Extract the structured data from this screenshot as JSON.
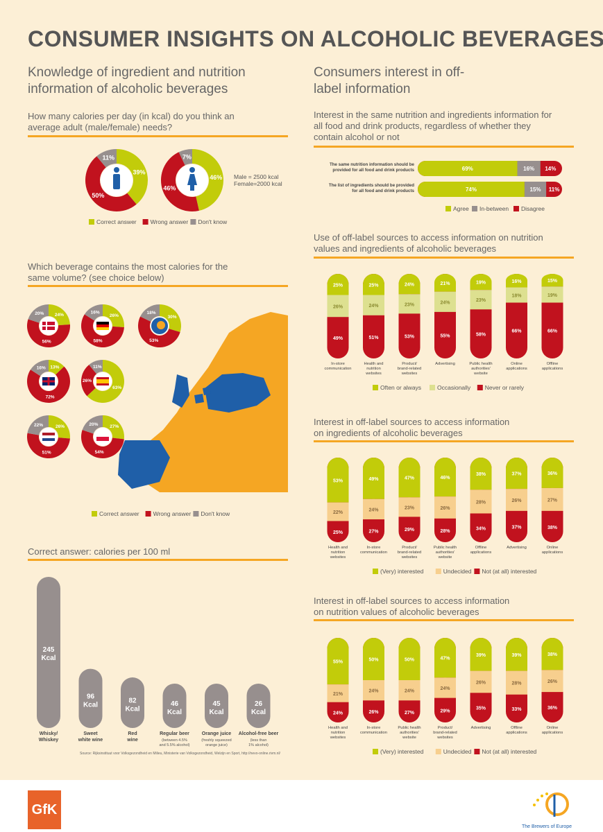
{
  "title": "CONSUMER INSIGHTS ON ALCOHOLIC BEVERAGES",
  "colors": {
    "green": "#c2cc0a",
    "red": "#c1121e",
    "grey": "#978f8e",
    "lightgreen": "#dde090",
    "lightorange": "#f7cf8e",
    "orange": "#f5a623",
    "blue": "#1f5fa8",
    "bg": "#fcefd6"
  },
  "left": {
    "section_title": "Knowledge of ingredient and nutrition information of alcoholic beverages",
    "q1": "How many calories per day (in kcal) do you think an average adult (male/female) needs?",
    "q1_note_male": "Male = 2500 kcal",
    "q1_note_female": "Female=2000 kcal",
    "legend_correct": "Correct answer",
    "legend_wrong": "Wrong answer",
    "legend_dontknow": "Don't know",
    "q2": "Which beverage contains the most calories for the same volume? (see choice below)",
    "q3": "Correct answer: calories per 100 ml",
    "source": "Source: Rijksinstituut voor Volksgezondheid en Milieu, Ministerie van Volksgezondheid, Welzijn en Sport, http://nevo-online.rivm.nl/"
  },
  "right": {
    "section_title": "Consumers interest in off-label information",
    "c1_title": "Interest in the same nutrition and ingredients information for all food and drink products, regardless of whether they contain alcohol or not",
    "c2_title": "Use of off-label sources to access information on nutrition values and ingredients of alcoholic beverages",
    "c3_title": "Interest in off-label sources to access information on ingredients of alcoholic beverages",
    "c4_title": "Interest in off-label sources to access information on nutrition values of alcoholic beverages"
  },
  "logos": {
    "gfk": "GfK",
    "brewers": "The Brewers of Europe"
  },
  "chart_data": [
    {
      "type": "pie",
      "id": "calories_per_day",
      "series": [
        {
          "name": "Male",
          "values": {
            "Correct answer": 39,
            "Wrong answer": 50,
            "Don't know": 11
          }
        },
        {
          "name": "Female",
          "values": {
            "Correct answer": 46,
            "Wrong answer": 46,
            "Don't know": 7
          }
        }
      ]
    },
    {
      "type": "pie",
      "id": "most_calories_by_country",
      "categories": [
        "Denmark",
        "Germany",
        "EU",
        "United Kingdom",
        "Spain",
        "Netherlands",
        "Poland"
      ],
      "series": [
        {
          "name": "Correct answer",
          "values": [
            24,
            26,
            30,
            13,
            63,
            26,
            27
          ]
        },
        {
          "name": "Wrong answer",
          "values": [
            56,
            58,
            53,
            72,
            26,
            51,
            54
          ]
        },
        {
          "name": "Don't know",
          "values": [
            20,
            16,
            18,
            16,
            11,
            22,
            20
          ]
        }
      ]
    },
    {
      "type": "bar",
      "id": "calories_per_100ml",
      "title": "Correct answer: calories per 100 ml",
      "categories": [
        "Whisky/ Whiskey",
        "Sweet white wine",
        "Red wine",
        "Regular beer",
        "Orange juice",
        "Alcohol-free beer"
      ],
      "subcaptions": [
        "",
        "",
        "",
        "(between 4.5% and 5.5% alcohol)",
        "(freshly squeezed orange juice)",
        "(less than 1% alcohol)"
      ],
      "values": [
        245,
        96,
        82,
        46,
        45,
        26
      ],
      "unit": "Kcal"
    },
    {
      "type": "bar",
      "id": "same_info",
      "categories": [
        "The same nutrition information should be provided for all food and drink products",
        "The list of ingredients should be provided for all food and drink products"
      ],
      "series": [
        {
          "name": "Agree",
          "values": [
            69,
            74
          ]
        },
        {
          "name": "In-between",
          "values": [
            16,
            15
          ]
        },
        {
          "name": "Disagree",
          "values": [
            14,
            11
          ]
        }
      ]
    },
    {
      "type": "bar",
      "id": "use_offlabel",
      "categories": [
        "In-store communication",
        "Health and nutrition websites",
        "Product/ brand-related websites",
        "Advertising",
        "Public health authorities' website",
        "Online applications",
        "Offline applications"
      ],
      "series": [
        {
          "name": "Often or always",
          "values": [
            25,
            25,
            24,
            21,
            19,
            16,
            15
          ]
        },
        {
          "name": "Occasionally",
          "values": [
            26,
            24,
            23,
            24,
            23,
            18,
            19
          ]
        },
        {
          "name": "Never or rarely",
          "values": [
            49,
            51,
            53,
            55,
            58,
            66,
            66
          ]
        }
      ]
    },
    {
      "type": "bar",
      "id": "interest_ingredients",
      "categories": [
        "Health and nutrition websites",
        "In-store communication",
        "Product/ brand-related websites",
        "Public health authorities' website",
        "Offline applications",
        "Advertising",
        "Online applications"
      ],
      "series": [
        {
          "name": "(Very) interested",
          "values": [
            53,
            49,
            47,
            46,
            38,
            37,
            36
          ]
        },
        {
          "name": "Undecided",
          "values": [
            22,
            24,
            23,
            26,
            28,
            26,
            27
          ]
        },
        {
          "name": "Not (at all) interested",
          "values": [
            25,
            27,
            29,
            28,
            34,
            37,
            38
          ]
        }
      ]
    },
    {
      "type": "bar",
      "id": "interest_nutrition",
      "categories": [
        "Health and nutrition websites",
        "In-store communication",
        "Public health authorities' website",
        "Product/ brand-related websites",
        "Advertising",
        "Offline applications",
        "Online applications"
      ],
      "series": [
        {
          "name": "(Very) interested",
          "values": [
            55,
            50,
            50,
            47,
            39,
            39,
            38
          ]
        },
        {
          "name": "Undecided",
          "values": [
            21,
            24,
            24,
            24,
            26,
            28,
            26
          ]
        },
        {
          "name": "Not (at all) interested",
          "values": [
            24,
            26,
            27,
            29,
            35,
            33,
            36
          ]
        }
      ]
    }
  ]
}
